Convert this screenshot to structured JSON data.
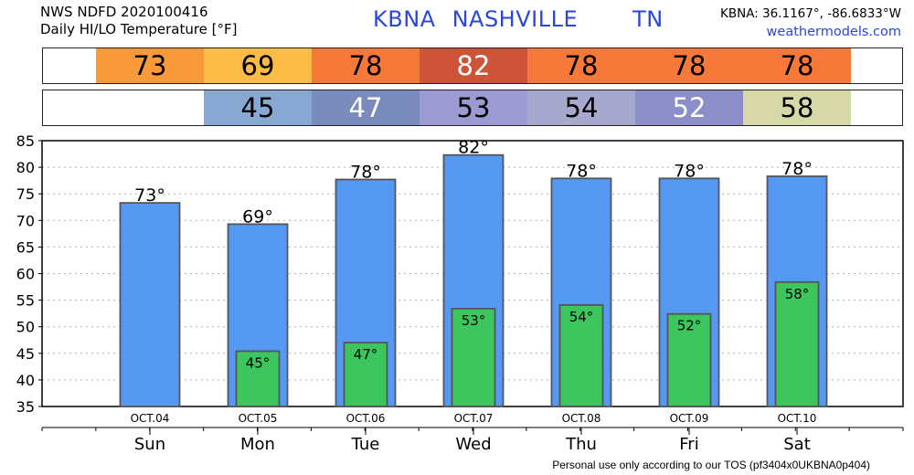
{
  "header": {
    "line1": "NWS NDFD 2020100416",
    "line2": "Daily HI/LO Temperature [°F]",
    "station_code": "KBNA",
    "station_name": "NASHVILLE",
    "state": "TN",
    "coords": "KBNA: 36.1167°, -86.6833°W",
    "site": "weathermodels.com"
  },
  "hi_strip": [
    {
      "value": "73",
      "color": "#f89a3a",
      "text_color": "#000000"
    },
    {
      "value": "69",
      "color": "#fbbb44",
      "text_color": "#000000"
    },
    {
      "value": "78",
      "color": "#f7793a",
      "text_color": "#000000"
    },
    {
      "value": "82",
      "color": "#cd5439",
      "text_color": "#ffffff"
    },
    {
      "value": "78",
      "color": "#f7793a",
      "text_color": "#000000"
    },
    {
      "value": "78",
      "color": "#f7793a",
      "text_color": "#000000"
    },
    {
      "value": "78",
      "color": "#f7793a",
      "text_color": "#000000"
    }
  ],
  "lo_strip": [
    {
      "value": "",
      "color": "#ffffff",
      "text_color": "#000000"
    },
    {
      "value": "45",
      "color": "#87a8d3",
      "text_color": "#000000"
    },
    {
      "value": "47",
      "color": "#7a8bbd",
      "text_color": "#ffffff"
    },
    {
      "value": "53",
      "color": "#9b9ad3",
      "text_color": "#000000"
    },
    {
      "value": "54",
      "color": "#a6a8cd",
      "text_color": "#000000"
    },
    {
      "value": "52",
      "color": "#8c8ec9",
      "text_color": "#ffffff"
    },
    {
      "value": "58",
      "color": "#d6d8a8",
      "text_color": "#000000"
    }
  ],
  "chart_data": {
    "type": "bar",
    "categories": [
      "Sun",
      "Mon",
      "Tue",
      "Wed",
      "Thu",
      "Fri",
      "Sat"
    ],
    "dates": [
      "OCT.04",
      "OCT.05",
      "OCT.06",
      "OCT.07",
      "OCT.08",
      "OCT.09",
      "OCT.10"
    ],
    "series": [
      {
        "name": "",
        "values": [
          73,
          69,
          78,
          82,
          78,
          78,
          78
        ],
        "plotted": [
          73.3,
          69.3,
          77.7,
          82.3,
          77.9,
          77.9,
          78.3
        ],
        "labels": [
          "73°",
          "69°",
          "78°",
          "82°",
          "78°",
          "78°",
          "78°"
        ],
        "color": "#5599f2"
      },
      {
        "name": "",
        "values": [
          null,
          45,
          47,
          53,
          54,
          52,
          58
        ],
        "plotted": [
          null,
          45.4,
          47.0,
          53.4,
          54.1,
          52.4,
          58.4
        ],
        "labels": [
          "",
          "45°",
          "47°",
          "53°",
          "54°",
          "52°",
          "58°"
        ],
        "color": "#3dc65d"
      }
    ],
    "yticks": [
      35,
      40,
      45,
      50,
      55,
      60,
      65,
      70,
      75,
      80,
      85
    ],
    "ylim": [
      35,
      85
    ],
    "grid": true
  },
  "footer": "Personal use only according to our TOS (pf3404x0UKBNA0p404)"
}
